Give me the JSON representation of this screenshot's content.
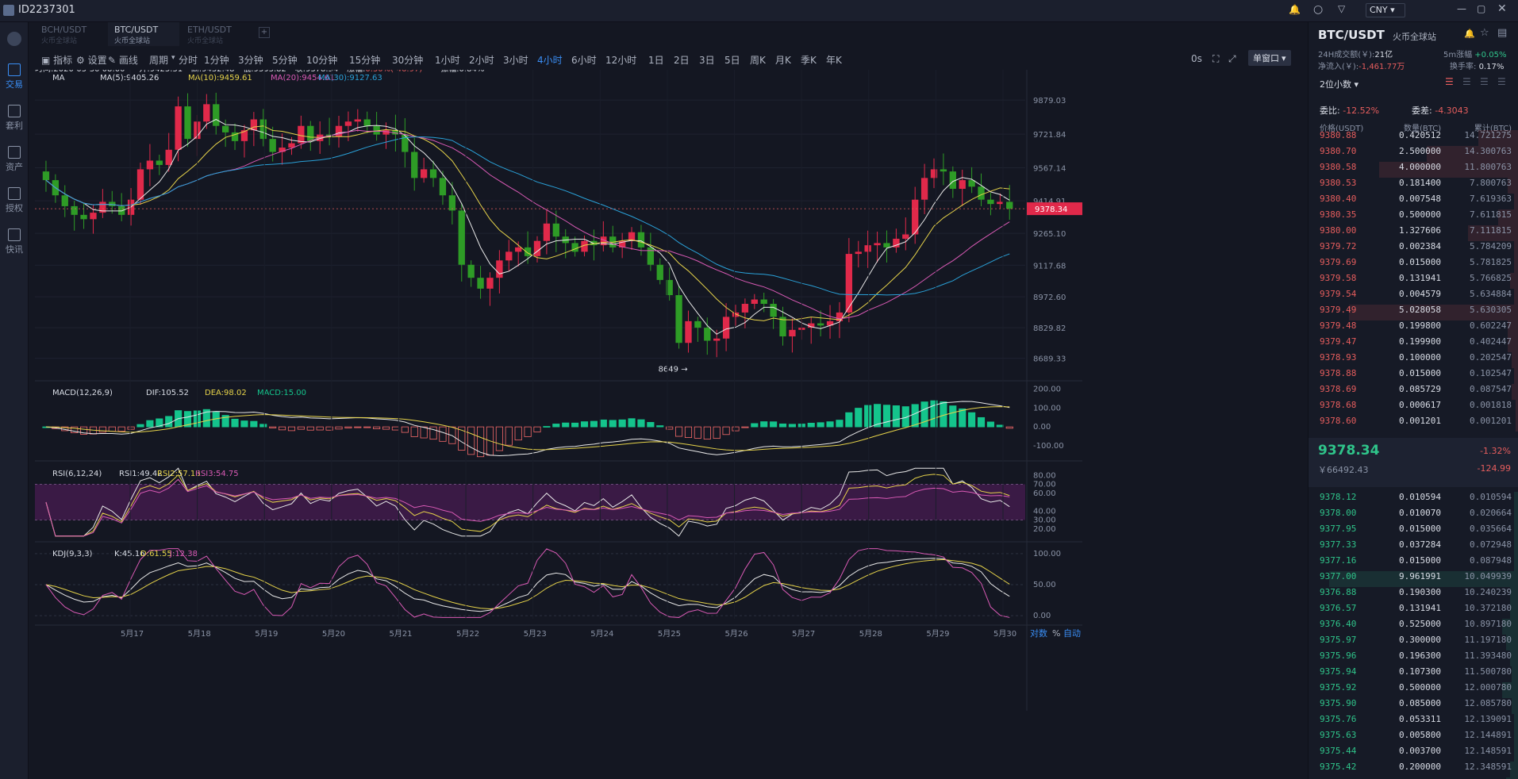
{
  "window": {
    "title": "ID2237301",
    "currency": "CNY"
  },
  "nav": [
    {
      "label": "交易",
      "icon": "trade-icon",
      "active": true
    },
    {
      "label": "套利",
      "icon": "arbitrage-icon"
    },
    {
      "label": "资产",
      "icon": "wallet-icon"
    },
    {
      "label": "授权",
      "icon": "key-icon"
    },
    {
      "label": "快讯",
      "icon": "news-icon"
    }
  ],
  "tabs": [
    {
      "label": "BCH/USDT",
      "sub": "火币全球站"
    },
    {
      "label": "BTC/USDT",
      "sub": "火币全球站",
      "active": true
    },
    {
      "label": "ETH/USDT",
      "sub": "火币全球站"
    }
  ],
  "toolbar": {
    "indicator": "指标",
    "settings": "设置",
    "draw": "画线",
    "period": "周期",
    "intervals": [
      "分时",
      "1分钟",
      "3分钟",
      "5分钟",
      "10分钟",
      "15分钟",
      "30分钟",
      "1小时",
      "2小时",
      "3小时",
      "4小时",
      "6小时",
      "12小时",
      "1日",
      "2日",
      "3日",
      "5日",
      "周K",
      "月K",
      "季K",
      "年K"
    ],
    "active_interval": "4小时",
    "latency": "0s",
    "window_mode": "单窗口"
  },
  "info": {
    "time": "时间:2020-05-30 08:00",
    "open": "开:9425.31",
    "high": "高:9432.48",
    "low": "低:9353.82",
    "close": "收:9378.34",
    "change_label": "涨幅:",
    "change": "-0.50%(-46.97)",
    "amp": "振幅:0.84%"
  },
  "ma": {
    "name": "MA",
    "ma5": "MA(5):9405.26",
    "ma10": "MA(10):9459.61",
    "ma20": "MA(20):9454.61",
    "ma30": "MA(30):9127.63"
  },
  "macd": {
    "name": "MACD(12,26,9)",
    "dif": "DIF:105.52",
    "dea": "DEA:98.02",
    "macd": "MACD:15.00"
  },
  "rsi": {
    "name": "RSI(6,12,24)",
    "r1": "RSI1:49.42",
    "r2": "RSI2:57.16",
    "r3": "RSI3:54.75"
  },
  "kdj": {
    "name": "KDJ(9,3,3)",
    "k": "K:45.16",
    "d": "D:61.55",
    "j": "J:12.38"
  },
  "chart_data": {
    "type": "candlestick",
    "price_ticks": [
      "9879.03",
      "9721.84",
      "9567.14",
      "9414.91",
      "9265.10",
      "9117.68",
      "8972.60",
      "8829.82",
      "8689.33"
    ],
    "ylim": [
      8600,
      9960
    ],
    "current_price": "9378.34",
    "low_marker": "8649 →",
    "dates": [
      "5月17",
      "5月18",
      "5月19",
      "5月20",
      "5月21",
      "5月22",
      "5月23",
      "5月24",
      "5月25",
      "5月26",
      "5月27",
      "5月28",
      "5月29",
      "5月30"
    ],
    "macd_ticks": [
      "200.00",
      "100.00",
      "0.00",
      "-100.00"
    ],
    "rsi_ticks": [
      "80.00",
      "70.00",
      "60.00",
      "40.00",
      "30.00",
      "20.00"
    ],
    "kdj_ticks": [
      "100.00",
      "50.00",
      "0.00"
    ],
    "closes": [
      9510,
      9440,
      9390,
      9350,
      9330,
      9360,
      9410,
      9390,
      9350,
      9420,
      9560,
      9600,
      9580,
      9650,
      9850,
      9700,
      9780,
      9860,
      9760,
      9730,
      9690,
      9740,
      9790,
      9700,
      9640,
      9660,
      9680,
      9760,
      9690,
      9720,
      9710,
      9760,
      9780,
      9790,
      9760,
      9720,
      9740,
      9720,
      9640,
      9520,
      9560,
      9520,
      9440,
      9370,
      9120,
      9060,
      9010,
      9060,
      9140,
      9180,
      9200,
      9160,
      9230,
      9310,
      9250,
      9220,
      9180,
      9230,
      9210,
      9250,
      9200,
      9230,
      9270,
      9200,
      9120,
      9050,
      8980,
      8760,
      8860,
      8830,
      8770,
      8780,
      8880,
      8900,
      8940,
      8960,
      8940,
      8880,
      8790,
      8820,
      8830,
      8850,
      8840,
      8860,
      8900,
      9170,
      9180,
      9210,
      9220,
      9200,
      9240,
      9260,
      9420,
      9520,
      9560,
      9550,
      9470,
      9510,
      9480,
      9420,
      9400,
      9410,
      9378
    ]
  },
  "panel": {
    "symbol": "BTC/USDT",
    "exchange": "火币全球站",
    "vol_label": "24H成交额(￥):",
    "vol": "21亿",
    "inflow_label": "净流入(￥):",
    "inflow": "-1,461.77万",
    "rise_label": "5m涨幅",
    "rise": "+0.05%",
    "turnover_label": "换手率:",
    "turnover": "0.17%",
    "decimals": "2位小数",
    "ratio_label": "委比:",
    "ratio": "-12.52%",
    "diff_label": "委差:",
    "diff": "-4.3043",
    "col_price": "价格(USDT)",
    "col_qty": "数量(BTC)",
    "col_total": "累计(BTC)",
    "last": "9378.34",
    "last_cny": "￥66492.43",
    "pct": "-1.32%",
    "chg": "-124.99"
  },
  "asks": [
    [
      "9380.88",
      "0.420512",
      "14.721275",
      0.2
    ],
    [
      "9380.70",
      "2.500000",
      "14.300763",
      0.46
    ],
    [
      "9380.58",
      "4.000000",
      "11.800763",
      0.7
    ],
    [
      "9380.53",
      "0.181400",
      "7.800763",
      0.05
    ],
    [
      "9380.40",
      "0.007548",
      "7.619363",
      0.02
    ],
    [
      "9380.35",
      "0.500000",
      "7.611815",
      0.1
    ],
    [
      "9380.00",
      "1.327606",
      "7.111815",
      0.25
    ],
    [
      "9379.72",
      "0.002384",
      "5.784209",
      0.02
    ],
    [
      "9379.69",
      "0.015000",
      "5.781825",
      0.02
    ],
    [
      "9379.58",
      "0.131941",
      "5.766825",
      0.04
    ],
    [
      "9379.54",
      "0.004579",
      "5.634884",
      0.02
    ],
    [
      "9379.49",
      "5.028058",
      "5.630305",
      0.85
    ],
    [
      "9379.48",
      "0.199800",
      "0.602247",
      0.05
    ],
    [
      "9379.47",
      "0.199900",
      "0.402447",
      0.05
    ],
    [
      "9378.93",
      "0.100000",
      "0.202547",
      0.03
    ],
    [
      "9378.88",
      "0.015000",
      "0.102547",
      0.02
    ],
    [
      "9378.69",
      "0.085729",
      "0.087547",
      0.03
    ],
    [
      "9378.68",
      "0.000617",
      "0.001818",
      0.01
    ],
    [
      "9378.60",
      "0.001201",
      "0.001201",
      0.01
    ]
  ],
  "bids": [
    [
      "9378.12",
      "0.010594",
      "0.010594",
      0.02
    ],
    [
      "9378.00",
      "0.010070",
      "0.020664",
      0.02
    ],
    [
      "9377.95",
      "0.015000",
      "0.035664",
      0.02
    ],
    [
      "9377.33",
      "0.037284",
      "0.072948",
      0.02
    ],
    [
      "9377.16",
      "0.015000",
      "0.087948",
      0.02
    ],
    [
      "9377.00",
      "9.961991",
      "10.049939",
      0.95
    ],
    [
      "9376.88",
      "0.190300",
      "10.240239",
      0.04
    ],
    [
      "9376.57",
      "0.131941",
      "10.372180",
      0.04
    ],
    [
      "9376.40",
      "0.525000",
      "10.897180",
      0.08
    ],
    [
      "9375.97",
      "0.300000",
      "11.197180",
      0.06
    ],
    [
      "9375.96",
      "0.196300",
      "11.393480",
      0.04
    ],
    [
      "9375.94",
      "0.107300",
      "11.500780",
      0.03
    ],
    [
      "9375.92",
      "0.500000",
      "12.000780",
      0.08
    ],
    [
      "9375.90",
      "0.085000",
      "12.085780",
      0.03
    ],
    [
      "9375.76",
      "0.053311",
      "12.139091",
      0.02
    ],
    [
      "9375.63",
      "0.005800",
      "12.144891",
      0.02
    ],
    [
      "9375.44",
      "0.003700",
      "12.148591",
      0.02
    ],
    [
      "9375.42",
      "0.200000",
      "12.348591",
      0.04
    ],
    [
      "9375.30",
      "0.500000",
      "12.848591",
      0.06
    ]
  ],
  "bottom": {
    "log": "对数",
    "pct": "%",
    "auto": "自动"
  },
  "colors": {
    "up": "#e0294a",
    "down": "#2e9c26",
    "ma5": "#e8e8e8",
    "ma10": "#e6d34a",
    "ma20": "#d95ab5",
    "ma30": "#2aa1d8",
    "accent": "#3a8ef5"
  }
}
